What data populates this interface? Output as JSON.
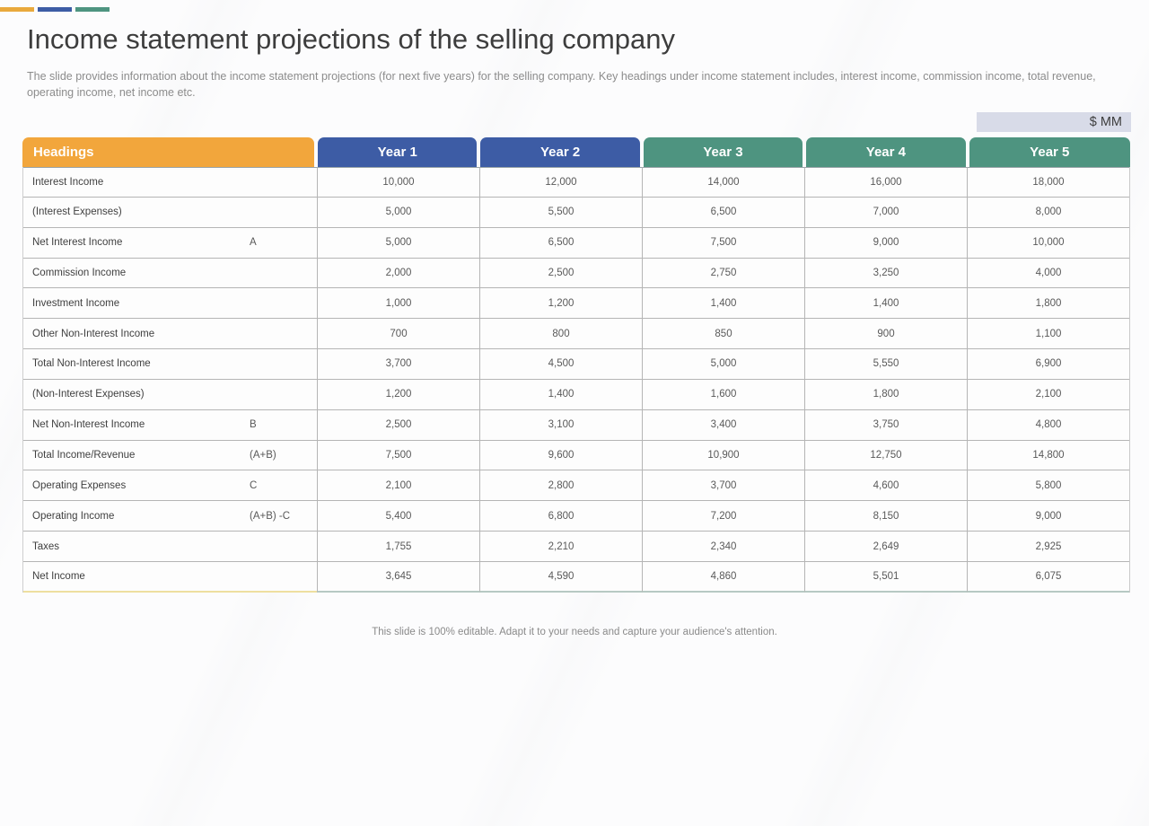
{
  "accent_bars": {
    "colors": [
      "#E9A93D",
      "#3D5CA5",
      "#4E9480"
    ]
  },
  "header": {
    "title": "Income statement projections of the selling company",
    "subtitle": "The slide provides information about the income statement projections (for next five years) for the selling company. Key headings under income statement includes, interest income, commission income, total revenue, operating income, net income etc.",
    "unit_label": "$ MM"
  },
  "table": {
    "headings_label": "Headings",
    "headings_color": "#F2A63C",
    "year_columns": [
      {
        "label": "Year 1",
        "color": "#3D5CA5"
      },
      {
        "label": "Year 2",
        "color": "#3D5CA5"
      },
      {
        "label": "Year 3",
        "color": "#4E9480"
      },
      {
        "label": "Year 4",
        "color": "#4E9480"
      },
      {
        "label": "Year 5",
        "color": "#4E9480"
      }
    ],
    "rows": [
      {
        "label": "Interest Income",
        "sub": "",
        "values": [
          "10,000",
          "12,000",
          "14,000",
          "16,000",
          "18,000"
        ]
      },
      {
        "label": "(Interest Expenses)",
        "sub": "",
        "values": [
          "5,000",
          "5,500",
          "6,500",
          "7,000",
          "8,000"
        ]
      },
      {
        "label": "Net Interest Income",
        "sub": "A",
        "values": [
          "5,000",
          "6,500",
          "7,500",
          "9,000",
          "10,000"
        ]
      },
      {
        "label": "Commission Income",
        "sub": "",
        "values": [
          "2,000",
          "2,500",
          "2,750",
          "3,250",
          "4,000"
        ]
      },
      {
        "label": "Investment Income",
        "sub": "",
        "values": [
          "1,000",
          "1,200",
          "1,400",
          "1,400",
          "1,800"
        ]
      },
      {
        "label": "Other Non-Interest Income",
        "sub": "",
        "values": [
          "700",
          "800",
          "850",
          "900",
          "1,100"
        ]
      },
      {
        "label": "Total Non-Interest Income",
        "sub": "",
        "values": [
          "3,700",
          "4,500",
          "5,000",
          "5,550",
          "6,900"
        ]
      },
      {
        "label": "(Non-Interest Expenses)",
        "sub": "",
        "values": [
          "1,200",
          "1,400",
          "1,600",
          "1,800",
          "2,100"
        ]
      },
      {
        "label": "Net Non-Interest Income",
        "sub": "B",
        "values": [
          "2,500",
          "3,100",
          "3,400",
          "3,750",
          "4,800"
        ]
      },
      {
        "label": "Total Income/Revenue",
        "sub": "(A+B)",
        "values": [
          "7,500",
          "9,600",
          "10,900",
          "12,750",
          "14,800"
        ]
      },
      {
        "label": "Operating Expenses",
        "sub": "C",
        "values": [
          "2,100",
          "2,800",
          "3,700",
          "4,600",
          "5,800"
        ]
      },
      {
        "label": "Operating Income",
        "sub": "(A+B) -C",
        "values": [
          "5,400",
          "6,800",
          "7,200",
          "8,150",
          "9,000"
        ]
      },
      {
        "label": "Taxes",
        "sub": "",
        "values": [
          "1,755",
          "2,210",
          "2,340",
          "2,649",
          "2,925"
        ]
      },
      {
        "label": "Net Income",
        "sub": "",
        "values": [
          "3,645",
          "4,590",
          "4,860",
          "5,501",
          "6,075"
        ]
      }
    ]
  },
  "footer": {
    "note": "This slide is 100% editable. Adapt it to your needs and capture your audience's attention."
  }
}
